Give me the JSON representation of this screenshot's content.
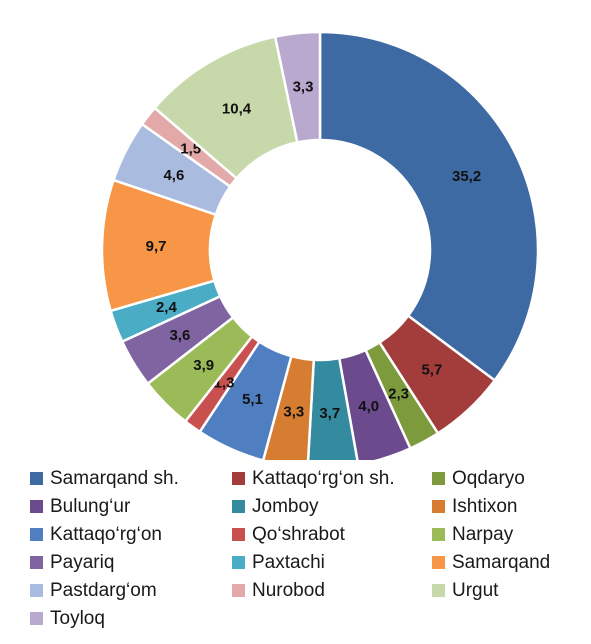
{
  "chart_data": {
    "type": "donut",
    "title": "",
    "legend_position": "bottom",
    "series": [
      {
        "name": "Samarqand sh.",
        "value": 35.2,
        "label": "35,2",
        "color": "#3e6aa4"
      },
      {
        "name": "Kattaqo‘rg‘on sh.",
        "value": 5.7,
        "label": "5,7",
        "color": "#a33d3b"
      },
      {
        "name": "Oqdaryo",
        "value": 2.3,
        "label": "2,3",
        "color": "#7d9b3c"
      },
      {
        "name": "Bulung‘ur",
        "value": 4.0,
        "label": "4,0",
        "color": "#6b4a8e"
      },
      {
        "name": "Jomboy",
        "value": 3.7,
        "label": "3,7",
        "color": "#348b9f"
      },
      {
        "name": "Ishtixon",
        "value": 3.3,
        "label": "3,3",
        "color": "#d77d32"
      },
      {
        "name": "Kattaqo‘rg‘on",
        "value": 5.1,
        "label": "5,1",
        "color": "#4f7fc1"
      },
      {
        "name": "Qo‘shrabot",
        "value": 1.3,
        "label": "1,3",
        "color": "#c8504e"
      },
      {
        "name": "Narpay",
        "value": 3.9,
        "label": "3,9",
        "color": "#9bbb59"
      },
      {
        "name": "Payariq",
        "value": 3.6,
        "label": "3,6",
        "color": "#8064a2"
      },
      {
        "name": "Paxtachi",
        "value": 2.4,
        "label": "2,4",
        "color": "#4bacc6"
      },
      {
        "name": "Samarqand",
        "value": 9.7,
        "label": "9,7",
        "color": "#f79646"
      },
      {
        "name": "Pastdarg‘om",
        "value": 4.6,
        "label": "4,6",
        "color": "#a9bcdf"
      },
      {
        "name": "Nurobod",
        "value": 1.5,
        "label": "1,5",
        "color": "#e2a9a8"
      },
      {
        "name": "Urgut",
        "value": 10.4,
        "label": "10,4",
        "color": "#c7d9ab"
      },
      {
        "name": "Toyloq",
        "value": 3.3,
        "label": "3,3",
        "color": "#b9a9cf"
      }
    ]
  }
}
